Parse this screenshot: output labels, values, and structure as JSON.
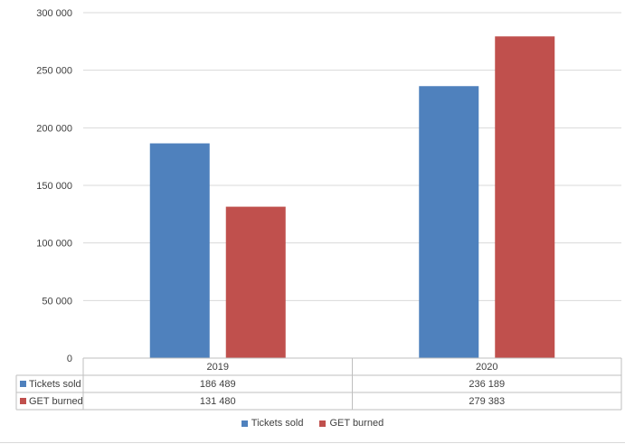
{
  "chart_data": {
    "type": "bar",
    "title": "",
    "xlabel": "",
    "ylabel": "",
    "categories": [
      "2019",
      "2020"
    ],
    "series": [
      {
        "name": "Tickets sold",
        "values": [
          186489,
          236189
        ],
        "labels": [
          "186 489",
          "236 189"
        ],
        "color": "#4f81bd"
      },
      {
        "name": "GET burned",
        "values": [
          131480,
          279383
        ],
        "labels": [
          "131 480",
          "279 383"
        ],
        "color": "#c0504d"
      }
    ],
    "ylim": [
      0,
      300000
    ],
    "yticks": [
      0,
      50000,
      100000,
      150000,
      200000,
      250000,
      300000
    ],
    "ytick_labels": [
      "0",
      "50 000",
      "100 000",
      "150 000",
      "200 000",
      "250 000",
      "300 000"
    ],
    "grid": true,
    "data_table": true,
    "legend": "bottom"
  }
}
